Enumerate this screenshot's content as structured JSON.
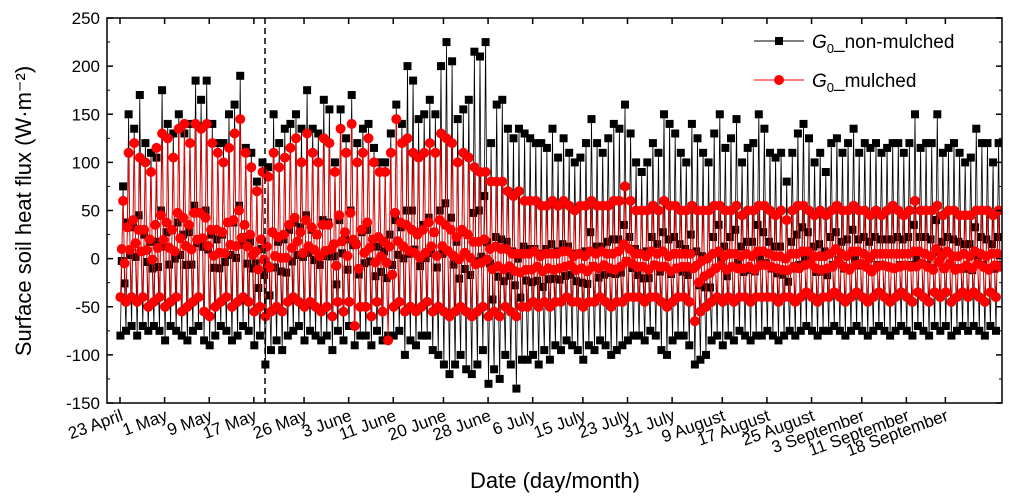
{
  "chart_data": {
    "type": "line",
    "title": "",
    "xlabel": "Date (day/month)",
    "ylabel": "Surface soil heat flux (W·m⁻²)",
    "ylim": [
      -150,
      250
    ],
    "yticks": [
      -150,
      -100,
      -50,
      0,
      50,
      100,
      150,
      200,
      250
    ],
    "xlim": [
      "2016-04-23",
      "2016-09-26"
    ],
    "xtick_dates": [
      "2016-04-23",
      "2016-05-01",
      "2016-05-09",
      "2016-05-17",
      "2016-05-26",
      "2016-06-03",
      "2016-06-11",
      "2016-06-20",
      "2016-06-28",
      "2016-07-06",
      "2016-07-15",
      "2016-07-23",
      "2016-07-31",
      "2016-08-09",
      "2016-08-17",
      "2016-08-25",
      "2016-09-03",
      "2016-09-11",
      "2016-09-18"
    ],
    "xtick_labels": [
      "23 April",
      "1 May",
      "9 May",
      "17 May",
      "26 May",
      "3 June",
      "11 June",
      "20 June",
      "28 June",
      "6 July",
      "15 July",
      "23 July",
      "31 July",
      "9 August",
      "17 August",
      "25 August",
      "3 September",
      "11 September",
      "18 September"
    ],
    "vline_date": "2016-05-19",
    "legend_position": "top-right",
    "series": [
      {
        "name": "G0_non-mulched",
        "legend_main": "G",
        "legend_sub": "0",
        "legend_rest": "_non-mulched",
        "color": "#000000",
        "marker": "square",
        "daily_max": [
          75,
          150,
          135,
          170,
          120,
          110,
          105,
          175,
          140,
          130,
          150,
          130,
          140,
          185,
          165,
          185,
          140,
          120,
          120,
          150,
          160,
          190,
          115,
          110,
          80,
          100,
          95,
          150,
          120,
          135,
          140,
          150,
          135,
          175,
          135,
          130,
          165,
          155,
          100,
          155,
          125,
          170,
          120,
          135,
          140,
          115,
          100,
          100,
          130,
          160,
          140,
          200,
          185,
          145,
          150,
          165,
          150,
          200,
          225,
          205,
          145,
          155,
          165,
          215,
          210,
          225,
          120,
          160,
          165,
          135,
          125,
          135,
          130,
          125,
          120,
          120,
          115,
          135,
          105,
          125,
          110,
          100,
          105,
          120,
          145,
          120,
          110,
          125,
          140,
          135,
          160,
          130,
          100,
          90,
          100,
          120,
          110,
          150,
          140,
          130,
          110,
          100,
          140,
          125,
          110,
          100,
          130,
          150,
          115,
          125,
          145,
          100,
          115,
          120,
          150,
          135,
          110,
          105,
          110,
          80,
          110,
          130,
          140,
          125,
          100,
          110,
          90,
          120,
          125,
          110,
          120,
          135,
          110,
          120,
          115,
          120,
          110,
          115,
          120,
          120,
          110,
          120,
          150,
          115,
          120,
          120,
          150,
          110,
          115,
          120,
          110,
          100,
          105,
          135,
          120,
          120,
          100,
          120
        ],
        "daily_min": [
          -80,
          -75,
          -70,
          -80,
          -70,
          -75,
          -70,
          -75,
          -85,
          -70,
          -75,
          -80,
          -85,
          -75,
          -70,
          -85,
          -90,
          -80,
          -70,
          -75,
          -85,
          -80,
          -70,
          -75,
          -90,
          -80,
          -110,
          -95,
          -85,
          -95,
          -80,
          -75,
          -70,
          -85,
          -75,
          -80,
          -85,
          -80,
          -95,
          -75,
          -85,
          -70,
          -90,
          -80,
          -80,
          -90,
          -75,
          -85,
          -80,
          -80,
          -75,
          -100,
          -85,
          -90,
          -80,
          -80,
          -95,
          -100,
          -110,
          -120,
          -110,
          -100,
          -115,
          -120,
          -110,
          -95,
          -130,
          -115,
          -125,
          -100,
          -110,
          -135,
          -105,
          -105,
          -100,
          -110,
          -95,
          -105,
          -90,
          -95,
          -85,
          -90,
          -95,
          -105,
          -90,
          -95,
          -85,
          -90,
          -100,
          -95,
          -90,
          -85,
          -80,
          -80,
          -85,
          -75,
          -80,
          -95,
          -100,
          -85,
          -80,
          -80,
          -90,
          -110,
          -105,
          -100,
          -85,
          -80,
          -90,
          -80,
          -85,
          -75,
          -80,
          -85,
          -80,
          -80,
          -75,
          -80,
          -85,
          -80,
          -75,
          -80,
          -75,
          -70,
          -75,
          -80,
          -75,
          -75,
          -70,
          -75,
          -80,
          -75,
          -70,
          -75,
          -80,
          -75,
          -70,
          -75,
          -80,
          -75,
          -70,
          -75,
          -80,
          -70,
          -75,
          -80,
          -70,
          -75,
          -70,
          -80,
          -75,
          -70,
          -75,
          -70,
          -75,
          -80,
          -70,
          -75
        ]
      },
      {
        "name": "G0_mulched",
        "legend_main": "G",
        "legend_sub": "0",
        "legend_rest": "_mulched",
        "color": "#ff0000",
        "marker": "circle",
        "daily_max": [
          60,
          110,
          120,
          105,
          100,
          90,
          115,
          130,
          125,
          105,
          135,
          140,
          120,
          140,
          135,
          140,
          120,
          110,
          100,
          115,
          130,
          145,
          110,
          95,
          70,
          90,
          85,
          110,
          95,
          105,
          115,
          125,
          100,
          130,
          110,
          100,
          125,
          120,
          90,
          135,
          110,
          140,
          100,
          110,
          125,
          100,
          90,
          90,
          110,
          145,
          120,
          125,
          110,
          105,
          110,
          120,
          110,
          130,
          125,
          120,
          100,
          110,
          105,
          95,
          90,
          90,
          80,
          80,
          80,
          70,
          65,
          70,
          60,
          60,
          60,
          55,
          55,
          60,
          55,
          60,
          55,
          50,
          55,
          55,
          60,
          55,
          55,
          55,
          60,
          60,
          75,
          60,
          50,
          50,
          50,
          55,
          50,
          60,
          55,
          55,
          50,
          50,
          55,
          50,
          50,
          50,
          55,
          55,
          50,
          50,
          55,
          45,
          50,
          50,
          55,
          55,
          50,
          45,
          50,
          40,
          50,
          55,
          55,
          50,
          45,
          50,
          45,
          50,
          55,
          50,
          50,
          55,
          50,
          50,
          45,
          50,
          45,
          50,
          55,
          50,
          45,
          50,
          60,
          50,
          50,
          50,
          55,
          45,
          50,
          50,
          45,
          45,
          45,
          50,
          50,
          50,
          45,
          50
        ],
        "daily_min": [
          -40,
          -45,
          -40,
          -45,
          -40,
          -50,
          -45,
          -40,
          -50,
          -45,
          -40,
          -55,
          -50,
          -45,
          -40,
          -55,
          -60,
          -50,
          -45,
          -40,
          -50,
          -45,
          -40,
          -45,
          -55,
          -50,
          -60,
          -55,
          -50,
          -55,
          -45,
          -40,
          -45,
          -50,
          -45,
          -50,
          -55,
          -50,
          -60,
          -45,
          -55,
          -45,
          -70,
          -50,
          -50,
          -60,
          -45,
          -55,
          -85,
          -50,
          -45,
          -55,
          -50,
          -55,
          -50,
          -45,
          -55,
          -50,
          -55,
          -60,
          -55,
          -50,
          -55,
          -60,
          -55,
          -50,
          -60,
          -55,
          -60,
          -50,
          -55,
          -60,
          -50,
          -50,
          -45,
          -50,
          -45,
          -50,
          -45,
          -45,
          -40,
          -45,
          -45,
          -50,
          -45,
          -45,
          -40,
          -45,
          -50,
          -45,
          -45,
          -40,
          -40,
          -40,
          -45,
          -40,
          -40,
          -45,
          -50,
          -45,
          -40,
          -40,
          -45,
          -65,
          -55,
          -50,
          -45,
          -40,
          -45,
          -40,
          -45,
          -40,
          -40,
          -45,
          -40,
          -40,
          -40,
          -40,
          -45,
          -40,
          -40,
          -45,
          -40,
          -35,
          -40,
          -45,
          -40,
          -40,
          -35,
          -40,
          -45,
          -40,
          -35,
          -40,
          -45,
          -40,
          -35,
          -40,
          -45,
          -40,
          -35,
          -40,
          -45,
          -35,
          -40,
          -45,
          -35,
          -40,
          -35,
          -45,
          -40,
          -35,
          -40,
          -35,
          -40,
          -45,
          -35,
          -40
        ]
      }
    ]
  }
}
